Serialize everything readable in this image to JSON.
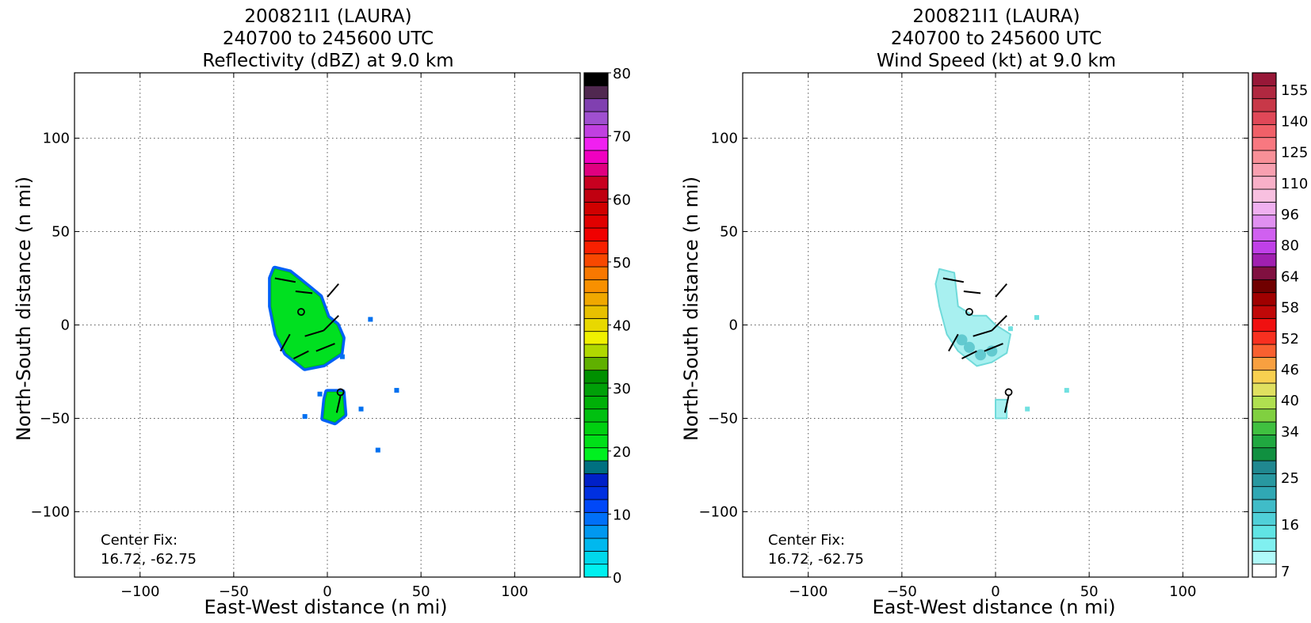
{
  "panels": [
    {
      "id": "reflectivity",
      "title_lines": [
        "200821I1 (LAURA)",
        "240700 to 245600 UTC",
        "Reflectivity (dBZ) at 9.0 km"
      ],
      "xlabel": "East-West distance (n mi)",
      "ylabel": "North-South distance (n mi)",
      "center_fix_label": "Center Fix:",
      "center_fix_value": "16.72, -62.75",
      "colorbar": {
        "ticks": [
          0,
          10,
          20,
          30,
          40,
          50,
          60,
          70,
          80
        ],
        "tick_labels": [
          "0",
          "10",
          "20",
          "30",
          "40",
          "50",
          "60",
          "70",
          "80"
        ],
        "colors": [
          "#00f0f0",
          "#00d8ec",
          "#00b8ee",
          "#0098f0",
          "#0070f8",
          "#0048f8",
          "#0030e0",
          "#0020c8",
          "#007080",
          "#00f020",
          "#00e018",
          "#00d010",
          "#00c010",
          "#00b008",
          "#00a008",
          "#009000",
          "#60b000",
          "#b0d800",
          "#f0f000",
          "#e8d800",
          "#e8c000",
          "#f0a800",
          "#f89000",
          "#f87800",
          "#f84800",
          "#f82000",
          "#f00000",
          "#e00000",
          "#d00000",
          "#c00010",
          "#c80020",
          "#e00080",
          "#f000c0",
          "#f020f0",
          "#c040e0",
          "#a050d0",
          "#8040b0",
          "#502850",
          "#000000"
        ]
      }
    },
    {
      "id": "windspeed",
      "title_lines": [
        "200821I1 (LAURA)",
        "240700 to 245600 UTC",
        "Wind Speed (kt) at 9.0 km"
      ],
      "xlabel": "East-West distance (n mi)",
      "ylabel": "North-South distance (n mi)",
      "center_fix_label": "Center Fix:",
      "center_fix_value": "16.72, -62.75",
      "colorbar": {
        "tick_labels": [
          "7",
          "16",
          "25",
          "34",
          "40",
          "46",
          "52",
          "58",
          "64",
          "80",
          "96",
          "110",
          "125",
          "140",
          "155"
        ],
        "tick_indices": [
          0,
          3,
          6,
          9,
          11,
          13,
          15,
          17,
          19,
          21,
          23,
          25,
          27,
          29,
          31
        ],
        "colors": [
          "#ffffff",
          "#b0fafa",
          "#80f0f0",
          "#60e4e4",
          "#50d0d8",
          "#40bcc8",
          "#30a8b4",
          "#2898a0",
          "#208890",
          "#109040",
          "#20a840",
          "#40c040",
          "#80d040",
          "#b0e050",
          "#e0e060",
          "#f8d050",
          "#f8a040",
          "#f86030",
          "#f83020",
          "#f01010",
          "#c00808",
          "#a00000",
          "#700000",
          "#801040",
          "#a020b0",
          "#c040e8",
          "#d060f0",
          "#e090f0",
          "#f0b0f0",
          "#f8c0e0",
          "#f8b0c8",
          "#f8a0b0",
          "#f89098",
          "#f87880",
          "#f06068",
          "#e04858",
          "#c83848",
          "#b02840",
          "#981838"
        ]
      }
    }
  ],
  "chart_data": [
    {
      "type": "heatmap",
      "title": "200821I1 (LAURA) 240700 to 245600 UTC Reflectivity (dBZ) at 9.0 km",
      "xlabel": "East-West distance (n mi)",
      "ylabel": "North-South distance (n mi)",
      "xlim": [
        -135,
        135
      ],
      "ylim": [
        -135,
        135
      ],
      "xticks": [
        -100,
        -50,
        0,
        50,
        100
      ],
      "yticks": [
        -100,
        -50,
        0,
        50,
        100
      ],
      "grid": true,
      "colorbar_range": [
        0,
        80
      ],
      "center_fix": [
        16.72,
        -62.75
      ],
      "echo_regions": [
        {
          "polygon": [
            [
              -28,
              30
            ],
            [
              -20,
              28
            ],
            [
              -10,
              20
            ],
            [
              -4,
              15
            ],
            [
              0,
              4
            ],
            [
              5,
              0
            ],
            [
              8,
              -7
            ],
            [
              7,
              -15
            ],
            [
              -2,
              -21
            ],
            [
              -12,
              -23
            ],
            [
              -22,
              -15
            ],
            [
              -27,
              -5
            ],
            [
              -30,
              10
            ],
            [
              -30,
              25
            ]
          ],
          "dBZ": 20
        },
        {
          "polygon": [
            [
              0,
              -36
            ],
            [
              8,
              -36
            ],
            [
              9,
              -48
            ],
            [
              4,
              -52
            ],
            [
              -2,
              -50
            ],
            [
              -1,
              -40
            ]
          ],
          "dBZ": 20
        }
      ],
      "markers": [
        {
          "x": -14,
          "y": 7
        },
        {
          "x": 7,
          "y": -36
        }
      ]
    },
    {
      "type": "heatmap",
      "title": "200821I1 (LAURA) 240700 to 245600 UTC Wind Speed (kt) at 9.0 km",
      "xlabel": "East-West distance (n mi)",
      "ylabel": "North-South distance (n mi)",
      "xlim": [
        -135,
        135
      ],
      "ylim": [
        -135,
        135
      ],
      "xticks": [
        -100,
        -50,
        0,
        50,
        100
      ],
      "yticks": [
        -100,
        -50,
        0,
        50,
        100
      ],
      "grid": true,
      "colorbar_labels": [
        7,
        16,
        25,
        34,
        40,
        46,
        52,
        58,
        64,
        80,
        96,
        110,
        125,
        140,
        155
      ],
      "center_fix": [
        16.72,
        -62.75
      ],
      "wind_regions": [
        {
          "polygon": [
            [
              -30,
              30
            ],
            [
              -22,
              28
            ],
            [
              -20,
              10
            ],
            [
              -12,
              5
            ],
            [
              -5,
              5
            ],
            [
              0,
              0
            ],
            [
              8,
              -5
            ],
            [
              6,
              -15
            ],
            [
              -2,
              -20
            ],
            [
              -10,
              -22
            ],
            [
              -20,
              -14
            ],
            [
              -26,
              -5
            ],
            [
              -30,
              10
            ],
            [
              -32,
              22
            ]
          ],
          "kt": 16
        },
        {
          "polygon": [
            [
              0,
              -40
            ],
            [
              6,
              -40
            ],
            [
              6,
              -50
            ],
            [
              0,
              -50
            ]
          ],
          "kt": 16
        }
      ],
      "markers": [
        {
          "x": -14,
          "y": 7
        },
        {
          "x": 7,
          "y": -36
        }
      ]
    }
  ]
}
